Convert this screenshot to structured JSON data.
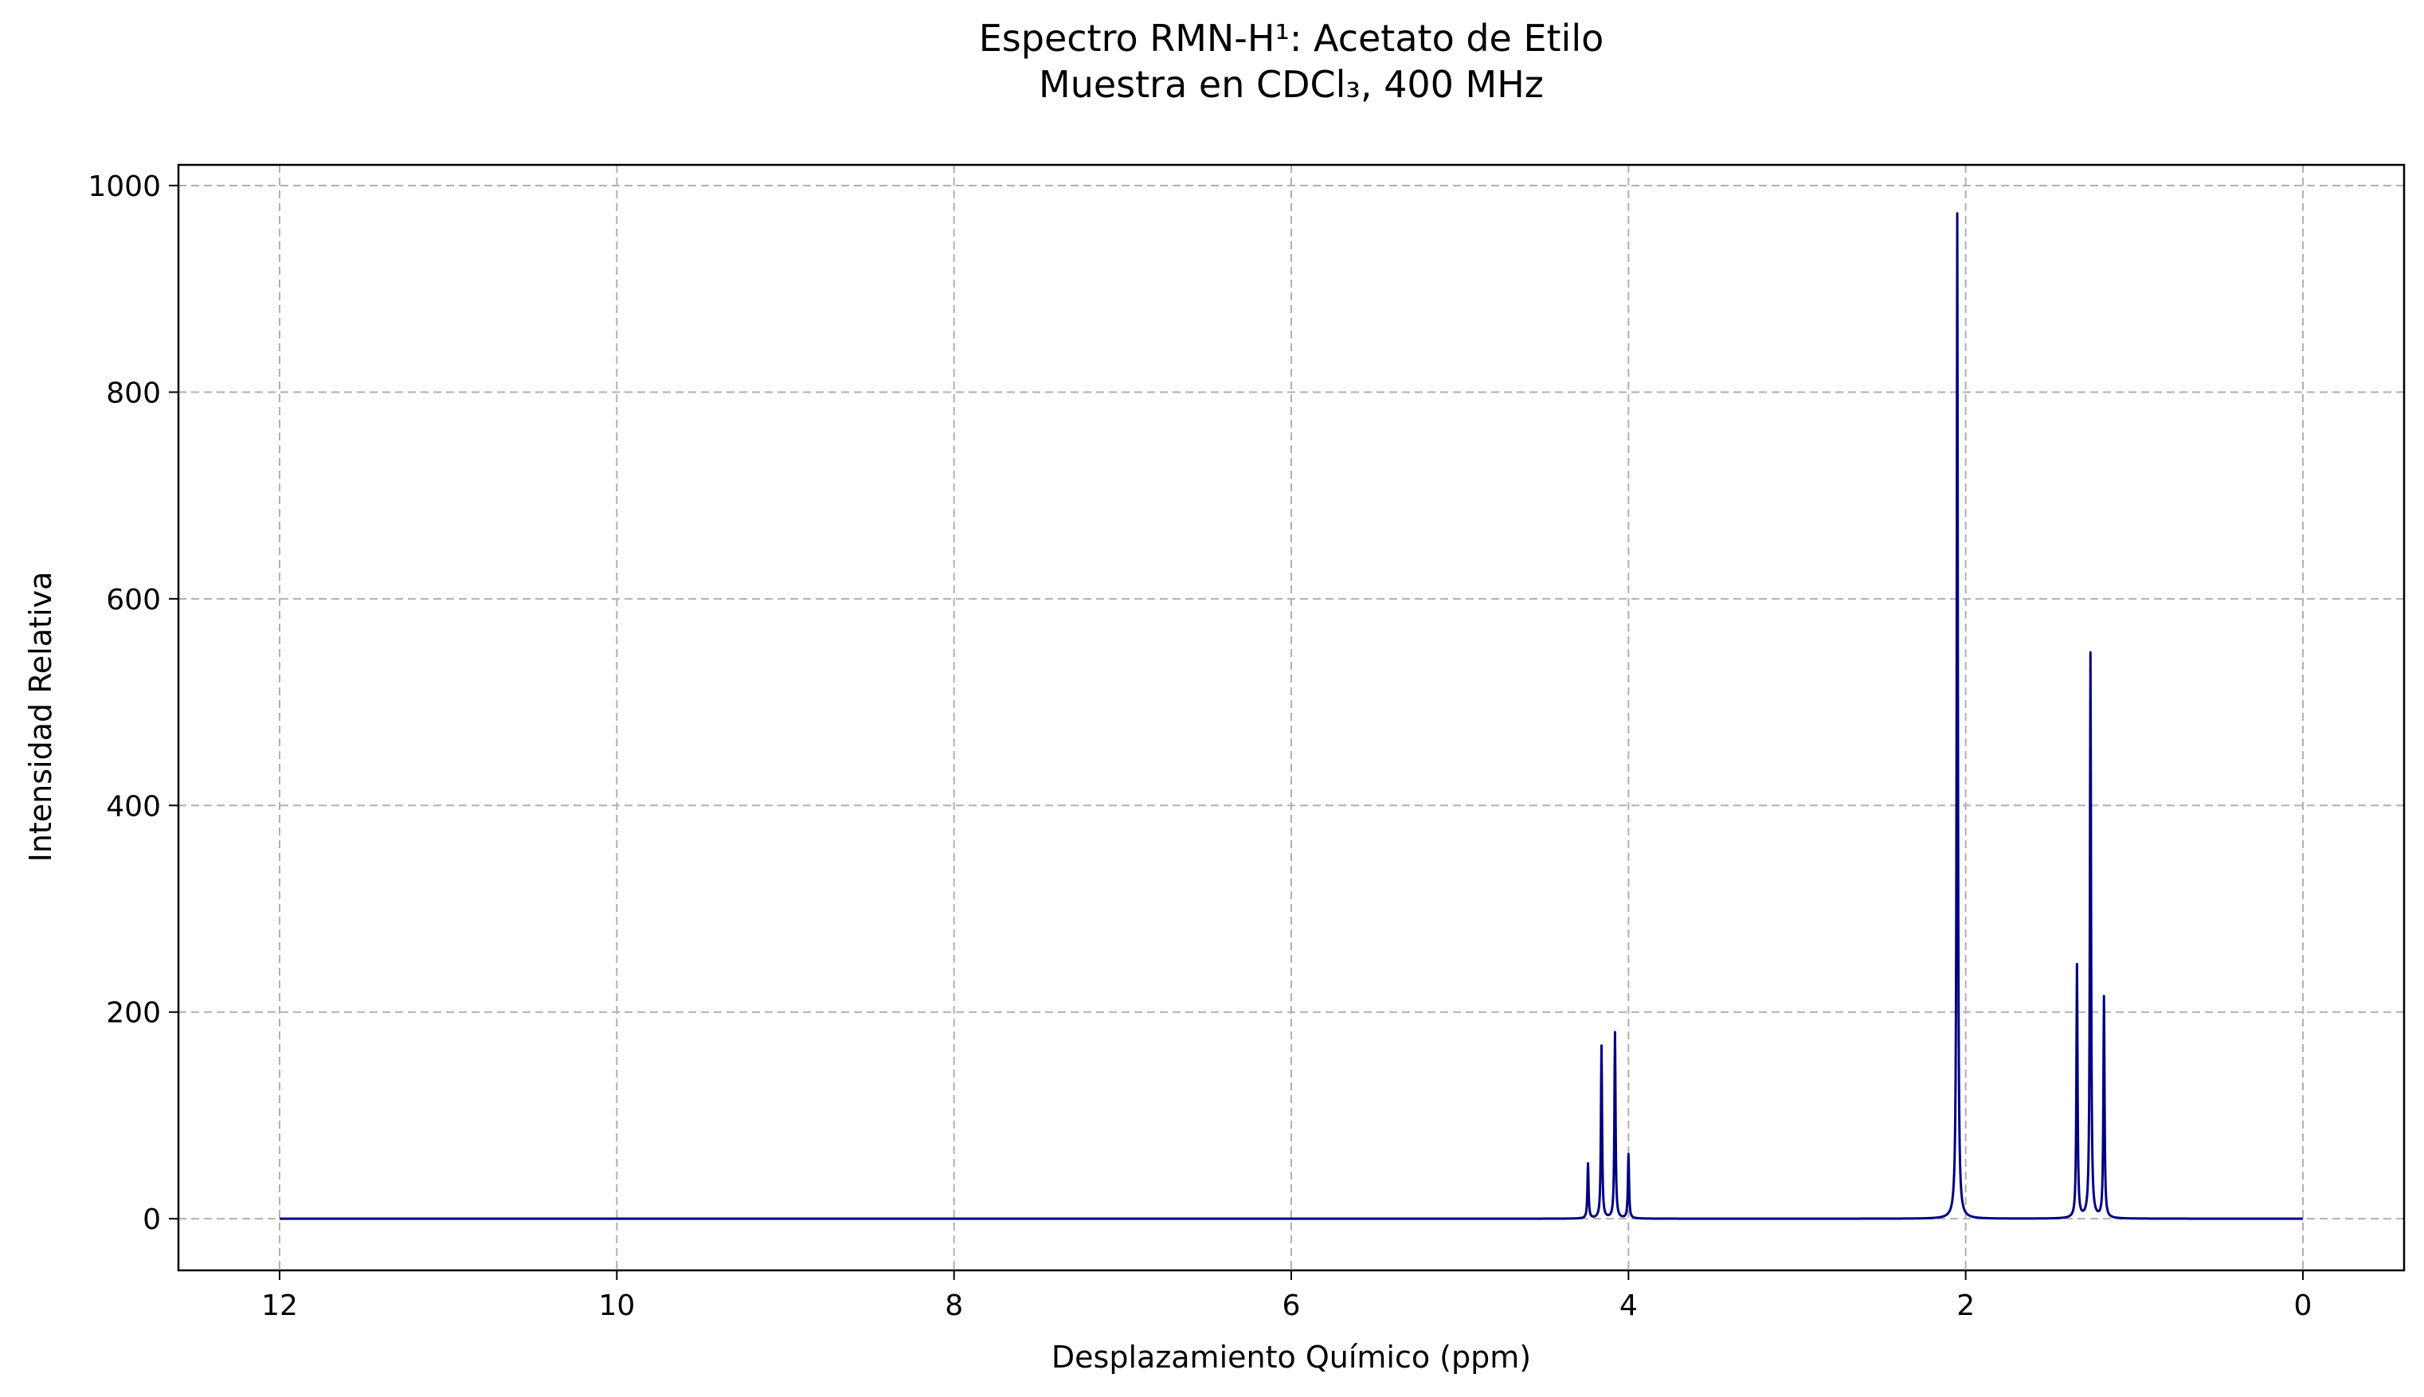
{
  "chart_data": {
    "type": "line",
    "title_lines": [
      "Espectro RMN-H¹: Acetato de Etilo",
      "Muestra en CDCl₃, 400 MHz"
    ],
    "xlabel": "Desplazamiento Químico (ppm)",
    "ylabel": "Intensidad Relativa",
    "xlim": [
      12.6,
      -0.6
    ],
    "ylim": [
      -50,
      1020
    ],
    "x_reversed": true,
    "x_ticks": [
      12,
      10,
      8,
      6,
      4,
      2,
      0
    ],
    "y_ticks": [
      0,
      200,
      400,
      600,
      800,
      1000
    ],
    "x_range": [
      12,
      0
    ],
    "grid": true,
    "line_color": "#000080",
    "peak_width_ppm": 0.004,
    "peaks": [
      {
        "x": 4.24,
        "y": 53
      },
      {
        "x": 4.16,
        "y": 167
      },
      {
        "x": 4.08,
        "y": 180
      },
      {
        "x": 4.0,
        "y": 62
      },
      {
        "x": 2.05,
        "y": 973
      },
      {
        "x": 1.34,
        "y": 245
      },
      {
        "x": 1.26,
        "y": 547
      },
      {
        "x": 1.18,
        "y": 214
      }
    ]
  }
}
